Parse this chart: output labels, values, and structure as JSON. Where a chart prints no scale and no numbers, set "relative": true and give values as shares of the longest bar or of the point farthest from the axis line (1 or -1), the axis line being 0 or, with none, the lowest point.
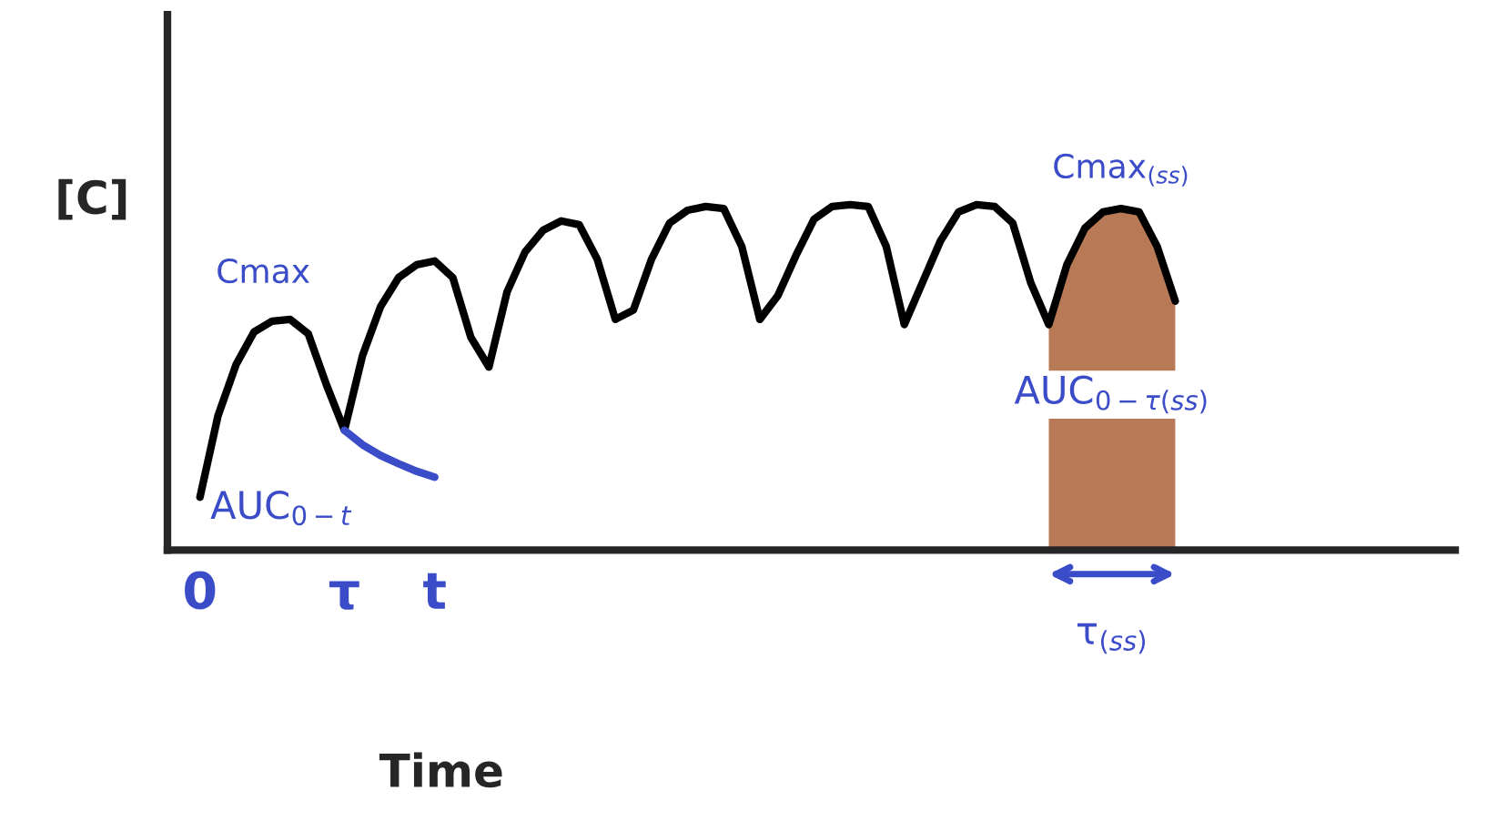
{
  "chart_data": {
    "type": "line",
    "relative": true,
    "xlabel": "Time",
    "ylabel": "[C]",
    "categories": [
      "0",
      null,
      null,
      null,
      null,
      null,
      null,
      null,
      "τ",
      null,
      null,
      null,
      null,
      "t",
      null,
      null,
      null,
      null,
      null,
      null,
      null,
      null,
      null,
      null,
      null,
      null,
      null,
      null,
      null,
      null,
      null,
      null,
      null,
      null,
      null,
      null,
      null,
      null,
      null,
      null,
      null,
      null,
      null,
      null,
      null,
      null,
      null,
      null,
      null,
      null,
      null,
      null,
      null,
      null,
      null,
      null,
      null,
      null,
      null,
      null,
      null,
      null,
      null,
      null,
      null,
      null,
      null,
      null,
      null,
      null
    ],
    "series": [
      {
        "color": "#000000",
        "values": [
          0.153,
          0.389,
          0.537,
          0.632,
          0.663,
          0.668,
          0.626,
          0.479,
          0.347,
          0.563,
          0.705,
          0.789,
          0.826,
          0.837,
          0.789,
          0.616,
          0.53,
          0.747,
          0.863,
          0.926,
          0.953,
          0.942,
          0.842,
          0.668,
          0.695,
          0.842,
          0.947,
          0.984,
          0.995,
          0.989,
          0.879,
          0.668,
          0.737,
          0.853,
          0.958,
          0.995,
          1.0,
          0.995,
          0.879,
          0.653,
          0.774,
          0.895,
          0.979,
          1.0,
          0.995,
          0.947,
          0.774,
          0.653,
          0.826,
          0.932,
          0.979,
          0.989,
          0.979,
          0.879,
          0.721,
          null,
          null,
          null,
          null,
          null,
          null,
          null,
          null,
          null,
          null,
          null,
          null,
          null,
          null,
          null
        ]
      },
      {
        "color": "#3b4cc8",
        "values": [
          null,
          null,
          null,
          null,
          null,
          null,
          null,
          null,
          0.347,
          0.305,
          0.274,
          0.25,
          0.228,
          0.211,
          null,
          null,
          null,
          null,
          null,
          null,
          null,
          null,
          null,
          null,
          null,
          null,
          null,
          null,
          null,
          null,
          null,
          null,
          null,
          null,
          null,
          null,
          null,
          null,
          null,
          null,
          null,
          null,
          null,
          null,
          null,
          null,
          null,
          null,
          null,
          null,
          null,
          null,
          null,
          null,
          null,
          null,
          null,
          null,
          null,
          null,
          null,
          null,
          null,
          null,
          null,
          null,
          null,
          null,
          null,
          null
        ]
      },
      {
        "type": "area",
        "color": "#b87a56",
        "values": [
          null,
          null,
          null,
          null,
          null,
          null,
          null,
          null,
          null,
          null,
          null,
          null,
          null,
          null,
          null,
          null,
          null,
          null,
          null,
          null,
          null,
          null,
          null,
          null,
          null,
          null,
          null,
          null,
          null,
          null,
          null,
          null,
          null,
          null,
          null,
          null,
          null,
          null,
          null,
          null,
          null,
          null,
          null,
          null,
          null,
          null,
          null,
          0.653,
          0.826,
          0.932,
          0.979,
          0.989,
          0.979,
          0.879,
          0.721,
          null,
          null,
          null,
          null,
          null,
          null,
          null,
          null,
          null,
          null,
          null,
          null,
          null,
          null,
          null
        ]
      }
    ],
    "annotations": [
      "Cmax",
      "AUC$_{0−t}$",
      "Cmax$_{(ss)}$",
      "AUC$_{0−τ(ss)}$",
      "τ$_{(ss)}$"
    ]
  }
}
